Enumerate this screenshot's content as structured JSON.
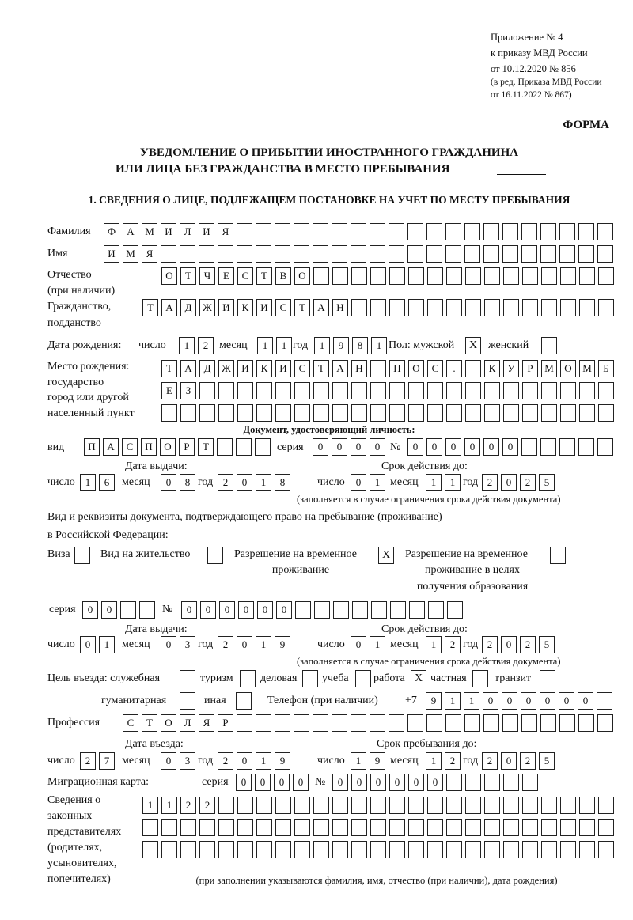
{
  "header": {
    "appendix": [
      "Приложение № 4",
      "к приказу МВД России",
      "от 10.12.2020 № 856"
    ],
    "edition": [
      "(в ред. Приказа МВД России",
      "от 16.11.2022 № 867)"
    ],
    "form_label": "ФОРМА",
    "title_line1": "УВЕДОМЛЕНИЕ О ПРИБЫТИИ ИНОСТРАННОГО ГРАЖДАНИНА",
    "title_line2": "ИЛИ ЛИЦА БЕЗ ГРАЖДАНСТВА В МЕСТО ПРЕБЫВАНИЯ",
    "section1": "1. СВЕДЕНИЯ О ЛИЦЕ, ПОДЛЕЖАЩЕМ ПОСТАНОВКЕ НА УЧЕТ ПО МЕСТУ ПРЕБЫВАНИЯ"
  },
  "labels": {
    "surname": "Фамилия",
    "name": "Имя",
    "patronymic": "Отчество",
    "patronymic_note": "(при наличии)",
    "citizenship": "Гражданство,",
    "citizenship2": "подданство",
    "birth_date": "Дата рождения:",
    "day": "число",
    "month": "месяц",
    "year": "год",
    "sex": "Пол: мужской",
    "female": "женский",
    "birth_place": [
      "Место рождения:",
      "государство",
      "город или другой",
      "населенный пункт"
    ],
    "id_doc": "Документ, удостоверяющий личность:",
    "kind": "вид",
    "series": "серия",
    "number": "№",
    "issue_date": "Дата выдачи:",
    "valid_until": "Срок действия до:",
    "validity_note": "(заполняется в случае ограничения срока действия документа)",
    "stay_doc_line1": "Вид и реквизиты документа, подтверждающего право на пребывание (проживание)",
    "stay_doc_line2": "в Российской Федерации:",
    "visa": "Виза",
    "residence": "Вид на жительство",
    "trp": "Разрешение на временное",
    "trp2": "проживание",
    "trp_edu": "Разрешение на временное",
    "trp_edu2": "проживание в целях",
    "trp_edu3": "получения образования",
    "purpose": "Цель въезда: служебная",
    "tourism": "туризм",
    "business": "деловая",
    "study": "учеба",
    "work": "работа",
    "private": "частная",
    "transit": "транзит",
    "humanitarian": "гуманитарная",
    "other": "иная",
    "phone": "Телефон (при наличии)",
    "phone_prefix": "+7",
    "profession": "Профессия",
    "entry_date": "Дата въезда:",
    "stay_until": "Срок пребывания до:",
    "migration_card": "Миграционная карта:",
    "legal_reps": [
      "Сведения о",
      "законных",
      "представителях",
      "(родителях,",
      "усыновителях,",
      "попечителях)"
    ],
    "legal_reps_note": "(при заполнении указываются фамилия, имя, отчество (при наличии), дата рождения)"
  },
  "person": {
    "surname": "ФАМИЛИЯ",
    "name": "ИМЯ",
    "patronymic": "ОТЧЕСТВО",
    "citizenship": "ТАДЖИКИСТАН",
    "birth_day": "12",
    "birth_month": "11",
    "birth_year": "1981",
    "male": "X",
    "female": "",
    "birth_place_1": "ТАДЖИКИСТАН ПОС. КУРМОМБ",
    "birth_place_2": "ЕЗ",
    "birth_place_3": ""
  },
  "id_document": {
    "kind": "ПАСПОРТ",
    "series": "0000",
    "number": "000000",
    "issue_day": "16",
    "issue_month": "08",
    "issue_year": "2018",
    "valid_day": "01",
    "valid_month": "11",
    "valid_year": "2025"
  },
  "stay_document": {
    "visa": "",
    "residence": "",
    "trp": "X",
    "trp_edu": "",
    "series": "00",
    "number": "000000",
    "issue_day": "01",
    "issue_month": "03",
    "issue_year": "2019",
    "valid_day": "01",
    "valid_month": "12",
    "valid_year": "2025"
  },
  "purpose": {
    "official": "",
    "tourism": "",
    "business": "",
    "study": "",
    "work": "X",
    "private": "",
    "transit": "",
    "humanitarian": "",
    "other": ""
  },
  "phone": "911000000",
  "profession": "СТОЛЯР",
  "entry": {
    "entry_day": "27",
    "entry_month": "03",
    "entry_year": "2019",
    "stay_day": "19",
    "stay_month": "12",
    "stay_year": "2025"
  },
  "migration_card": {
    "series": "0000",
    "number": "000000"
  },
  "legal_reps": {
    "line1": "1122",
    "line2": "",
    "line3": ""
  }
}
